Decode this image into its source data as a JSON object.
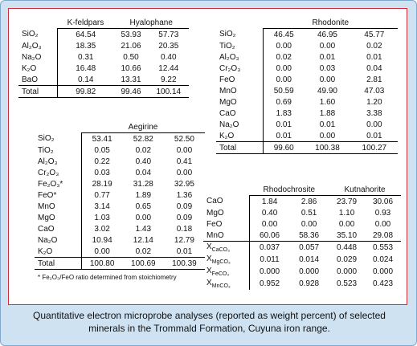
{
  "tables": [
    {
      "groups": [
        "K-feldpars",
        "Hyalophane"
      ],
      "sections": [
        [
          {
            "label": "SiO₂",
            "values": [
              [
                "64.54"
              ],
              [
                "53.93",
                "57.73"
              ]
            ]
          },
          {
            "label": "Al₂O₃",
            "values": [
              [
                "18.35"
              ],
              [
                "21.06",
                "20.35"
              ]
            ]
          },
          {
            "label": "Na₂O",
            "values": [
              [
                "0.31"
              ],
              [
                "0.50",
                "0.40"
              ]
            ]
          },
          {
            "label": "K₂O",
            "values": [
              [
                "16.48"
              ],
              [
                "10.66",
                "12.44"
              ]
            ]
          },
          {
            "label": "BaO",
            "values": [
              [
                "0.14"
              ],
              [
                "13.31",
                "9.22"
              ]
            ]
          }
        ],
        [
          {
            "label": "Total",
            "values": [
              [
                "99.82"
              ],
              [
                "99.46",
                "100.14"
              ]
            ]
          }
        ]
      ]
    },
    {
      "groups": [
        "Rhodonite"
      ],
      "sections": [
        [
          {
            "label": "SiO₂",
            "values": [
              [
                "46.45",
                "46.95",
                "45.77"
              ]
            ]
          },
          {
            "label": "TiO₂",
            "values": [
              [
                "0.00",
                "0.00",
                "0.02"
              ]
            ]
          },
          {
            "label": "Al₂O₃",
            "values": [
              [
                "0.02",
                "0.01",
                "0.01"
              ]
            ]
          },
          {
            "label": "Cr₂O₃",
            "values": [
              [
                "0.00",
                "0.03",
                "0.04"
              ]
            ]
          },
          {
            "label": "FeO",
            "values": [
              [
                "0.00",
                "0.00",
                "2.81"
              ]
            ]
          },
          {
            "label": "MnO",
            "values": [
              [
                "50.59",
                "49.90",
                "47.03"
              ]
            ]
          },
          {
            "label": "MgO",
            "values": [
              [
                "0.69",
                "1.60",
                "1.20"
              ]
            ]
          },
          {
            "label": "CaO",
            "values": [
              [
                "1.83",
                "1.88",
                "3.38"
              ]
            ]
          },
          {
            "label": "Na₂O",
            "values": [
              [
                "0.01",
                "0.01",
                "0.00"
              ]
            ]
          },
          {
            "label": "K₂O",
            "values": [
              [
                "0.01",
                "0.00",
                "0.01"
              ]
            ]
          }
        ],
        [
          {
            "label": "Total",
            "values": [
              [
                "99.60",
                "100.38",
                "100.27"
              ]
            ]
          }
        ]
      ]
    },
    {
      "groups": [
        "Aegirine"
      ],
      "sections": [
        [
          {
            "label": "SiO₂",
            "values": [
              [
                "53.41",
                "52.82",
                "52.50"
              ]
            ]
          },
          {
            "label": "TiO₂",
            "values": [
              [
                "0.05",
                "0.02",
                "0.00"
              ]
            ]
          },
          {
            "label": "Al₂O₃",
            "values": [
              [
                "0.22",
                "0.40",
                "0.41"
              ]
            ]
          },
          {
            "label": "Cr₂O₃",
            "values": [
              [
                "0.03",
                "0.04",
                "0.00"
              ]
            ]
          },
          {
            "label": "Fe₂O₃*",
            "values": [
              [
                "28.19",
                "31.28",
                "32.95"
              ]
            ]
          },
          {
            "label": "FeO*",
            "values": [
              [
                "0.77",
                "1.89",
                "1.36"
              ]
            ]
          },
          {
            "label": "MnO",
            "values": [
              [
                "3.14",
                "0.65",
                "0.09"
              ]
            ]
          },
          {
            "label": "MgO",
            "values": [
              [
                "1.03",
                "0.00",
                "0.09"
              ]
            ]
          },
          {
            "label": "CaO",
            "values": [
              [
                "3.02",
                "1.43",
                "0.18"
              ]
            ]
          },
          {
            "label": "Na₂O",
            "values": [
              [
                "10.94",
                "12.14",
                "12.79"
              ]
            ]
          },
          {
            "label": "K₂O",
            "values": [
              [
                "0.00",
                "0.02",
                "0.01"
              ]
            ]
          }
        ],
        [
          {
            "label": "Total",
            "values": [
              [
                "100.80",
                "100.69",
                "100.39"
              ]
            ]
          }
        ]
      ],
      "footnote": "* Fe₂O₃/FeO ratio determined from stoichiometry"
    },
    {
      "groups": [
        "Rhodochrosite",
        "Kutnahorite"
      ],
      "sections": [
        [
          {
            "label": "CaO",
            "values": [
              [
                "1.84",
                "2.86"
              ],
              [
                "23.79",
                "30.06"
              ]
            ]
          },
          {
            "label": "MgO",
            "values": [
              [
                "0.40",
                "0.51"
              ],
              [
                "1.10",
                "0.93"
              ]
            ]
          },
          {
            "label": "FeO",
            "values": [
              [
                "0.00",
                "0.00"
              ],
              [
                "0.00",
                "0.00"
              ]
            ]
          },
          {
            "label": "MnO",
            "values": [
              [
                "60.06",
                "58.36"
              ],
              [
                "35.10",
                "29.08"
              ]
            ]
          }
        ],
        [
          {
            "label": [
              "X",
              "CaCO₃"
            ],
            "values": [
              [
                "0.037",
                "0.057"
              ],
              [
                "0.448",
                "0.553"
              ]
            ]
          },
          {
            "label": [
              "X",
              "MgCO₃"
            ],
            "values": [
              [
                "0.011",
                "0.014"
              ],
              [
                "0.029",
                "0.024"
              ]
            ]
          },
          {
            "label": [
              "X",
              "FeCO₃"
            ],
            "values": [
              [
                "0.000",
                "0.000"
              ],
              [
                "0.000",
                "0.000"
              ]
            ]
          },
          {
            "label": [
              "X",
              "MnCO₃"
            ],
            "values": [
              [
                "0.952",
                "0.928"
              ],
              [
                "0.523",
                "0.423"
              ]
            ]
          }
        ]
      ]
    }
  ],
  "caption": "Quantitative electron microprobe analyses (reported as weight percent) of selected minerals in the Trommald Formation, Cuyuna iron range."
}
